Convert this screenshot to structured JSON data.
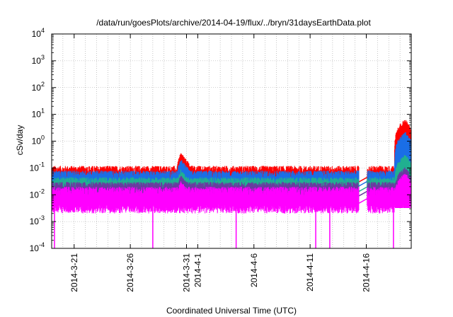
{
  "chart_data": {
    "type": "line",
    "title": "/data/run/goesPlots/archive/2014-04-19/flux/../bryn/31daysEarthData.plot",
    "xlabel": "Coordinated Universal Time (UTC)",
    "ylabel": "cSv/day",
    "y_scale": "log",
    "ylim": [
      0.0001,
      10000
    ],
    "y_tick_labels": [
      {
        "base": "10",
        "exp": "-4"
      },
      {
        "base": "10",
        "exp": "-3"
      },
      {
        "base": "10",
        "exp": "-2"
      },
      {
        "base": "10",
        "exp": "-1"
      },
      {
        "base": "10",
        "exp": "0"
      },
      {
        "base": "10",
        "exp": "1"
      },
      {
        "base": "10",
        "exp": "2"
      },
      {
        "base": "10",
        "exp": "3"
      },
      {
        "base": "10",
        "exp": "4"
      }
    ],
    "x_range": [
      "2014-03-19",
      "2014-04-20"
    ],
    "x_tick_labels": [
      "2014-3-21",
      "2014-3-26",
      "2014-3-31",
      "2014-4-1",
      "2014-4-6",
      "2014-4-11",
      "2014-4-16"
    ],
    "x_tick_dates": [
      "2014-03-21",
      "2014-03-26",
      "2014-03-31",
      "2014-04-01",
      "2014-04-06",
      "2014-04-11",
      "2014-04-16"
    ],
    "grid": true,
    "legend": "none",
    "data_gaps": [
      [
        "2014-04-15",
        "2014-04-16"
      ]
    ],
    "series": [
      {
        "color": "#ff0000",
        "typical": 0.05,
        "noise_high": 0.12,
        "noise_low": 0.03,
        "event_peak": 0.35,
        "flare_peak": 6.0
      },
      {
        "color": "#1a6ee6",
        "typical": 0.035,
        "noise_high": 0.08,
        "noise_low": 0.02,
        "event_peak": 0.2,
        "flare_peak": 2.0
      },
      {
        "color": "#20b090",
        "typical": 0.022,
        "noise_high": 0.045,
        "noise_low": 0.012,
        "event_peak": 0.08,
        "flare_peak": 0.3
      },
      {
        "color": "#6a3aa0",
        "typical": 0.015,
        "noise_high": 0.03,
        "noise_low": 0.008,
        "event_peak": 0.05,
        "flare_peak": 0.1
      },
      {
        "color": "#ff00ff",
        "typical": 0.008,
        "noise_high": 0.02,
        "noise_low": 0.004,
        "event_peak": 0.03,
        "flare_peak": 0.06
      }
    ],
    "dropouts_magenta": [
      "2014-03-19T06:00",
      "2014-03-28T00:00",
      "2014-04-04T10:00",
      "2014-04-11T12:00",
      "2014-04-12T18:00",
      "2014-04-18T10:00"
    ],
    "event": {
      "start": "2014-03-30T00:00",
      "peak": "2014-03-30T12:00"
    },
    "flare": {
      "start": "2014-04-18T12:00",
      "peak": "2014-04-19T12:00"
    }
  }
}
